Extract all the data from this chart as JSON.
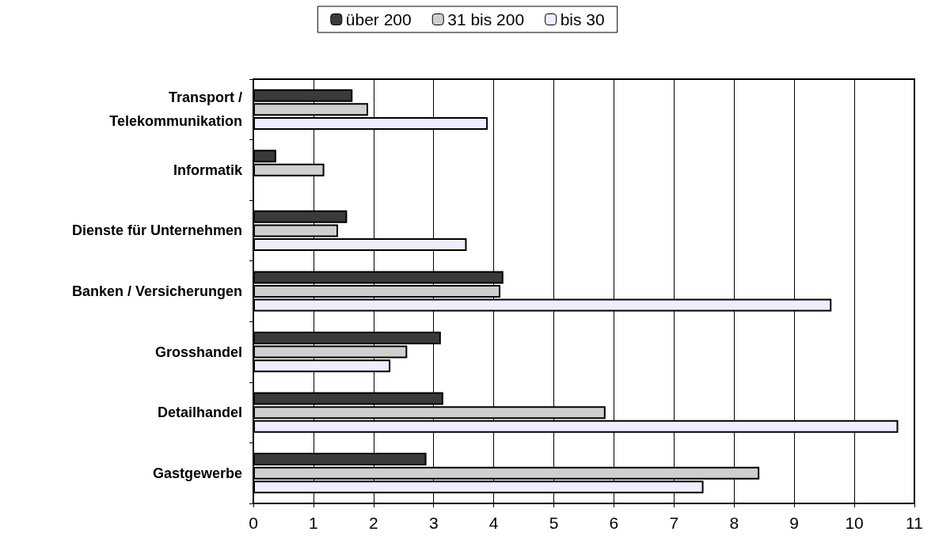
{
  "chart_data": {
    "type": "bar",
    "orientation": "horizontal",
    "categories": [
      "Transport /\nTelekommunikation",
      "Informatik",
      "Dienste für Unternehmen",
      "Banken / Versicherungen",
      "Grosshandel",
      "Detailhandel",
      "Gastgewerbe"
    ],
    "series": [
      {
        "name": "über 200",
        "color": "#3a3a3a",
        "values": [
          1.65,
          0.38,
          1.56,
          4.16,
          3.12,
          3.16,
          2.88
        ]
      },
      {
        "name": "31 bis 200",
        "color": "#cfcfcf",
        "values": [
          1.91,
          1.18,
          1.41,
          4.11,
          2.56,
          5.86,
          8.42
        ]
      },
      {
        "name": "bis 30",
        "color": "#eeeeff",
        "values": [
          3.9,
          null,
          3.55,
          9.62,
          2.28,
          10.73,
          7.49
        ]
      }
    ],
    "xlim": [
      0,
      11
    ],
    "xticks": [
      0,
      1,
      2,
      3,
      4,
      5,
      6,
      7,
      8,
      9,
      10,
      11
    ],
    "grid": "x",
    "legend": "top"
  }
}
